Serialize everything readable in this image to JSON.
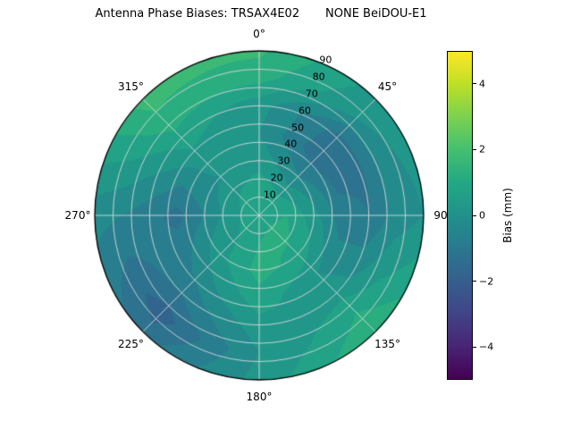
{
  "background_color": "#ffffff",
  "chart_data": {
    "type": "polar_contour",
    "title": "Antenna Phase Biases: TRSAX4E02       NONE BeiDOU-E1",
    "angular_tick_degrees": [
      0,
      45,
      90,
      135,
      180,
      225,
      270,
      315
    ],
    "angular_tick_labels": [
      "0°",
      "45°",
      "90",
      "135°",
      "180°",
      "225°",
      "270°",
      "315°"
    ],
    "radial_ticks": [
      10,
      20,
      30,
      40,
      50,
      60,
      70,
      80,
      90
    ],
    "radial_max": 90,
    "radial_label_angle_deg": 22.5,
    "grid_color": "#d9d9d9",
    "outline_color": "#000000",
    "contour_level_step": 0.5,
    "colorbar": {
      "label": "Bias (mm)",
      "tick_values": [
        -4,
        -2,
        0,
        2,
        4
      ],
      "tick_labels": [
        "−4",
        "−2",
        "0",
        "2",
        "4"
      ],
      "vmin": -5,
      "vmax": 5,
      "colormap": "viridis",
      "stops": [
        "#440154",
        "#482475",
        "#414487",
        "#355f8d",
        "#2a788e",
        "#21918c",
        "#22a884",
        "#44bf70",
        "#7ad151",
        "#bddf26",
        "#fde725"
      ]
    },
    "grid": {
      "azimuth_deg": [
        0,
        45,
        90,
        135,
        180,
        225,
        270,
        315,
        360
      ],
      "radius": [
        0,
        15,
        30,
        45,
        60,
        75,
        90
      ],
      "bias_mm": [
        [
          0.8,
          0.8,
          0.3,
          0.0,
          0.2,
          1.2,
          1.6
        ],
        [
          0.8,
          0.5,
          -0.5,
          -1.4,
          -1.2,
          0.0,
          0.3
        ],
        [
          0.8,
          1.0,
          0.2,
          -0.8,
          -1.0,
          -0.3,
          0.0
        ],
        [
          0.8,
          1.2,
          0.8,
          0.0,
          0.3,
          1.0,
          1.5
        ],
        [
          0.8,
          1.0,
          1.2,
          0.8,
          0.3,
          0.0,
          0.2
        ],
        [
          0.8,
          0.5,
          0.3,
          -0.3,
          -1.0,
          -1.8,
          -1.2
        ],
        [
          0.8,
          0.3,
          -0.5,
          -1.2,
          -0.8,
          -0.5,
          -0.3
        ],
        [
          0.8,
          0.5,
          0.0,
          0.3,
          0.8,
          1.4,
          1.7
        ],
        [
          0.8,
          0.8,
          0.3,
          0.0,
          0.2,
          1.2,
          1.6
        ]
      ]
    }
  }
}
